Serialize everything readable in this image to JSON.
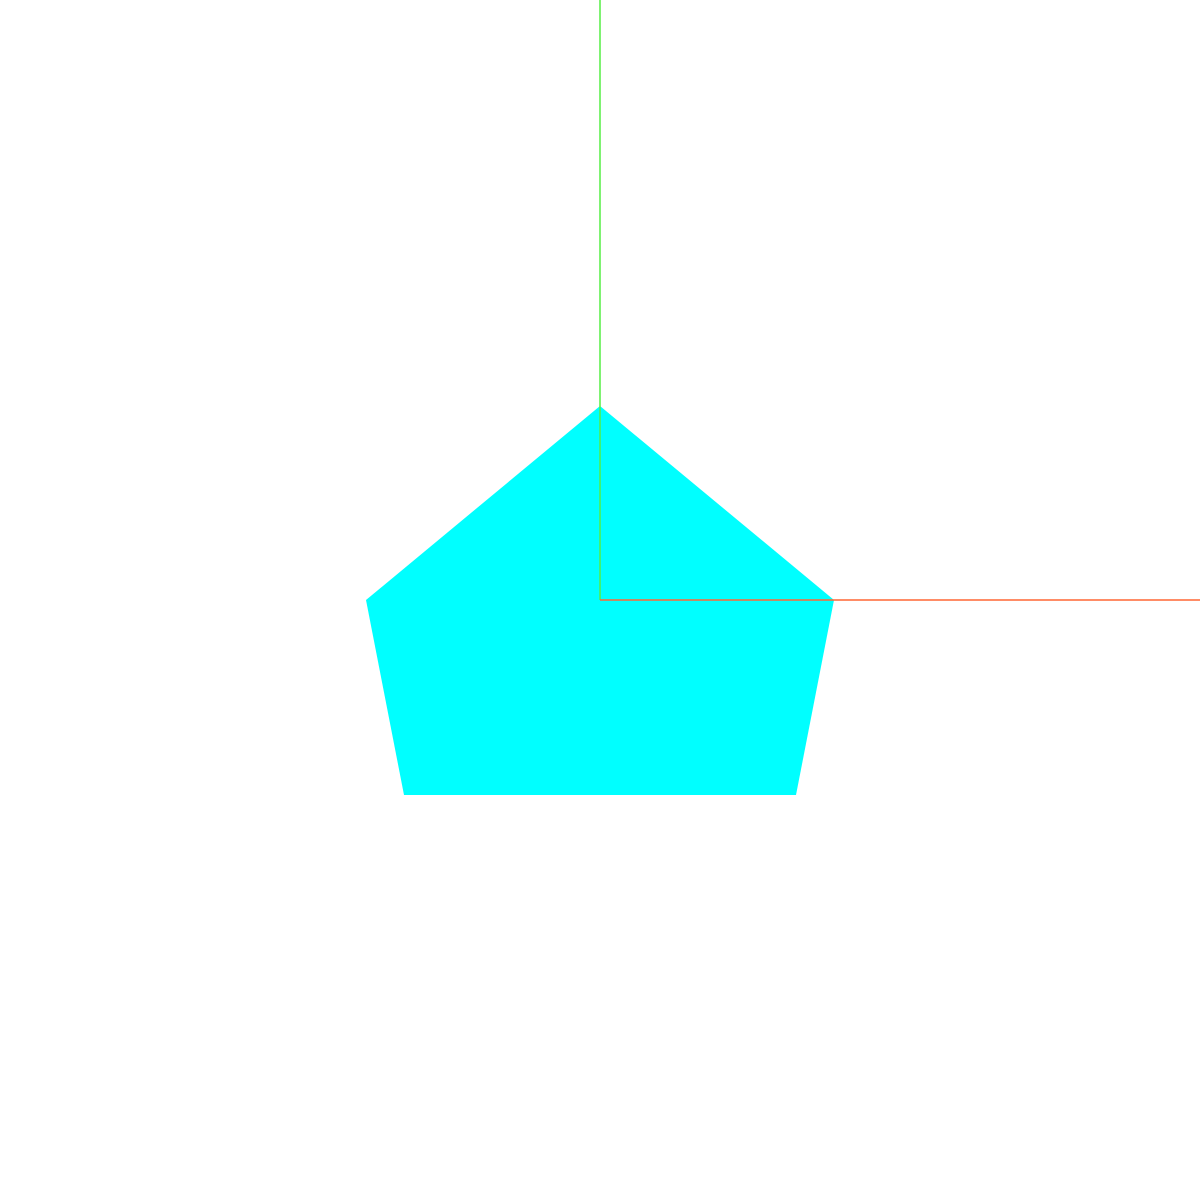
{
  "scene": {
    "background": "#ffffff",
    "shape": {
      "kind": "pentagon",
      "fill": "#00ffff"
    },
    "axes": {
      "x": {
        "color": "#ff6633"
      },
      "y": {
        "color": "#55ee44"
      }
    }
  }
}
